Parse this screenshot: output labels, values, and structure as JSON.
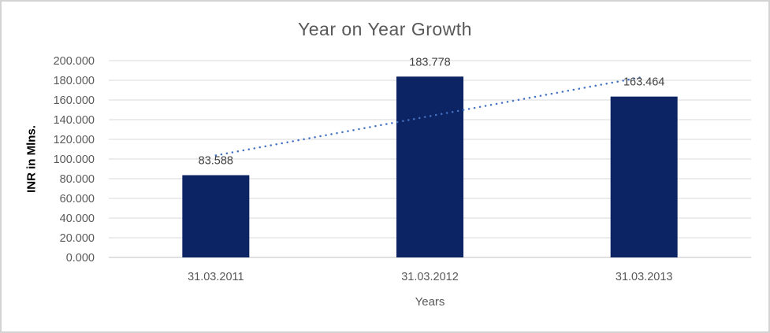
{
  "frame": {
    "background": "#ffffff",
    "border_color": "#d3d3d3"
  },
  "chart_data": {
    "type": "bar",
    "title": "Year on Year Growth",
    "xlabel": "Years",
    "ylabel": "INR in Mlns.",
    "categories": [
      "31.03.2011",
      "31.03.2012",
      "31.03.2013"
    ],
    "values": [
      83.588,
      183.778,
      163.464
    ],
    "value_labels": [
      "83.588",
      "183.778",
      "163.464"
    ],
    "ylim": [
      0,
      200
    ],
    "ytick_step": 20,
    "ytick_labels": [
      "0.000",
      "20.000",
      "40.000",
      "60.000",
      "80.000",
      "100.000",
      "120.000",
      "140.000",
      "160.000",
      "180.000",
      "200.000"
    ],
    "grid": true,
    "legend_position": "none",
    "trendline": {
      "type": "linear",
      "style": "dotted"
    },
    "colors": {
      "bar": "#0c2463",
      "trendline": "#4472c4",
      "gridline": "#d9d9d9",
      "axis_line": "#c0c0c0",
      "title_text": "#595959",
      "axis_text": "#595959",
      "data_label_text": "#404040"
    }
  }
}
